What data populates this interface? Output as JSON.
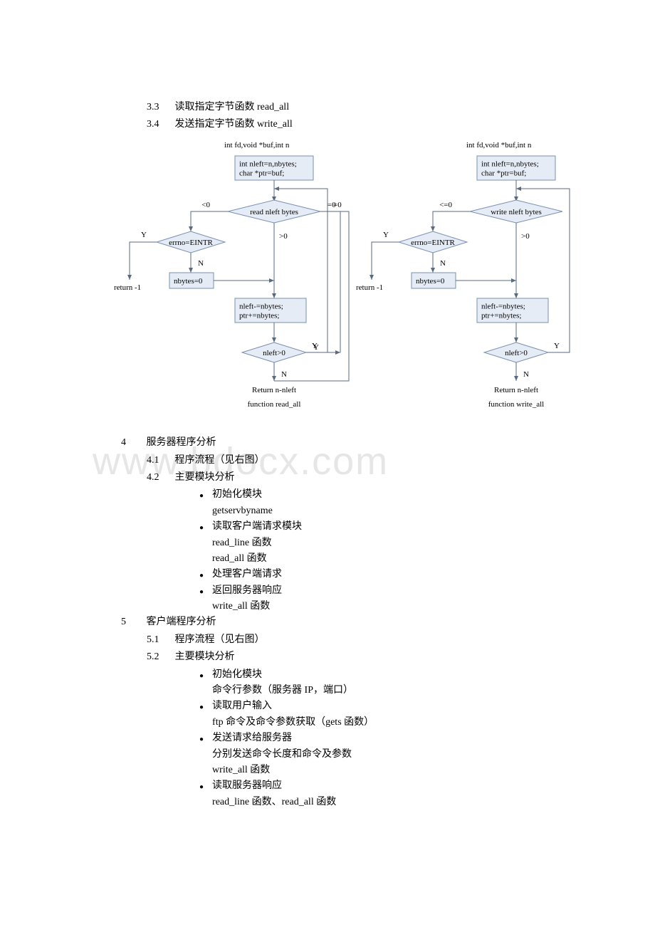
{
  "watermark": "www.bdocx.com",
  "toc": {
    "item_3_3": {
      "num": "3.3",
      "text": "读取指定字节函数 read_all"
    },
    "item_3_4": {
      "num": "3.4",
      "text": "发送指定字节函数 write_all"
    }
  },
  "flowcharts": {
    "box_fill": "#e6ecf5",
    "box_stroke": "#7a90b0",
    "arrow_stroke": "#5a6a80",
    "text_color": "#000000",
    "font_family": "Times New Roman, SimSun, serif",
    "font_size": 11,
    "left": {
      "header": "int fd,void *buf,int n",
      "init_box": "int nleft=n,nbytes;\\nchar *ptr=buf;",
      "decision_main": "read nleft bytes",
      "edge_lt0": "<0",
      "edge_eq0": "=0",
      "edge_gt0": ">0",
      "errno_box": "errno=EINTR",
      "edge_errno_y": "Y",
      "edge_errno_n": "N",
      "nbytes_box": "nbytes=0",
      "return_neg1": "return -1",
      "update_box": "nleft-=nbytes;\\nptr+=nbytes;",
      "loop_decision": "nleft>0",
      "loop_y": "Y",
      "loop_n": "N",
      "return_final": "Return n-nleft",
      "caption": "function read_all"
    },
    "right": {
      "header": "int fd,void *buf,int n",
      "init_box": "int nleft=n,nbytes;\\nchar *ptr=buf;",
      "decision_main": "write nleft bytes",
      "edge_lt0": "<=0",
      "edge_gt0": ">0",
      "errno_box": "errno=EINTR",
      "edge_errno_y": "Y",
      "edge_errno_n": "N",
      "nbytes_box": "nbytes=0",
      "return_neg1": "return -1",
      "update_box": "nleft-=nbytes;\\nptr+=nbytes;",
      "loop_decision": "nleft>0",
      "loop_y": "Y",
      "loop_n": "N",
      "return_final": "Return n-nleft",
      "caption": "function write_all"
    }
  },
  "section4": {
    "num": "4",
    "title": "服务器程序分析",
    "sub41": {
      "num": "4.1",
      "text": "程序流程（见右图）"
    },
    "sub42": {
      "num": "4.2",
      "text": "主要模块分析"
    },
    "bullets": {
      "b1_title": "初始化模块",
      "b1_line1": "getservbyname",
      "b2_title": "读取客户端请求模块",
      "b2_line1": "read_line 函数",
      "b2_line2": "read_all 函数",
      "b3_title": "处理客户端请求",
      "b4_title": "返回服务器响应",
      "b4_line1": "write_all 函数"
    }
  },
  "section5": {
    "num": "5",
    "title": "客户端程序分析",
    "sub51": {
      "num": "5.1",
      "text": "程序流程（见右图）"
    },
    "sub52": {
      "num": "5.2",
      "text": "主要模块分析"
    },
    "bullets": {
      "b1_title": "初始化模块",
      "b1_line1": "命令行参数（服务器 IP，端口）",
      "b2_title": "读取用户输入",
      "b2_line1": "ftp 命令及命令参数获取（gets 函数）",
      "b3_title": "发送请求给服务器",
      "b3_line1": "分别发送命令长度和命令及参数",
      "b3_line2": "write_all 函数",
      "b4_title": "读取服务器响应",
      "b4_line1": "read_line 函数、read_all 函数"
    }
  }
}
